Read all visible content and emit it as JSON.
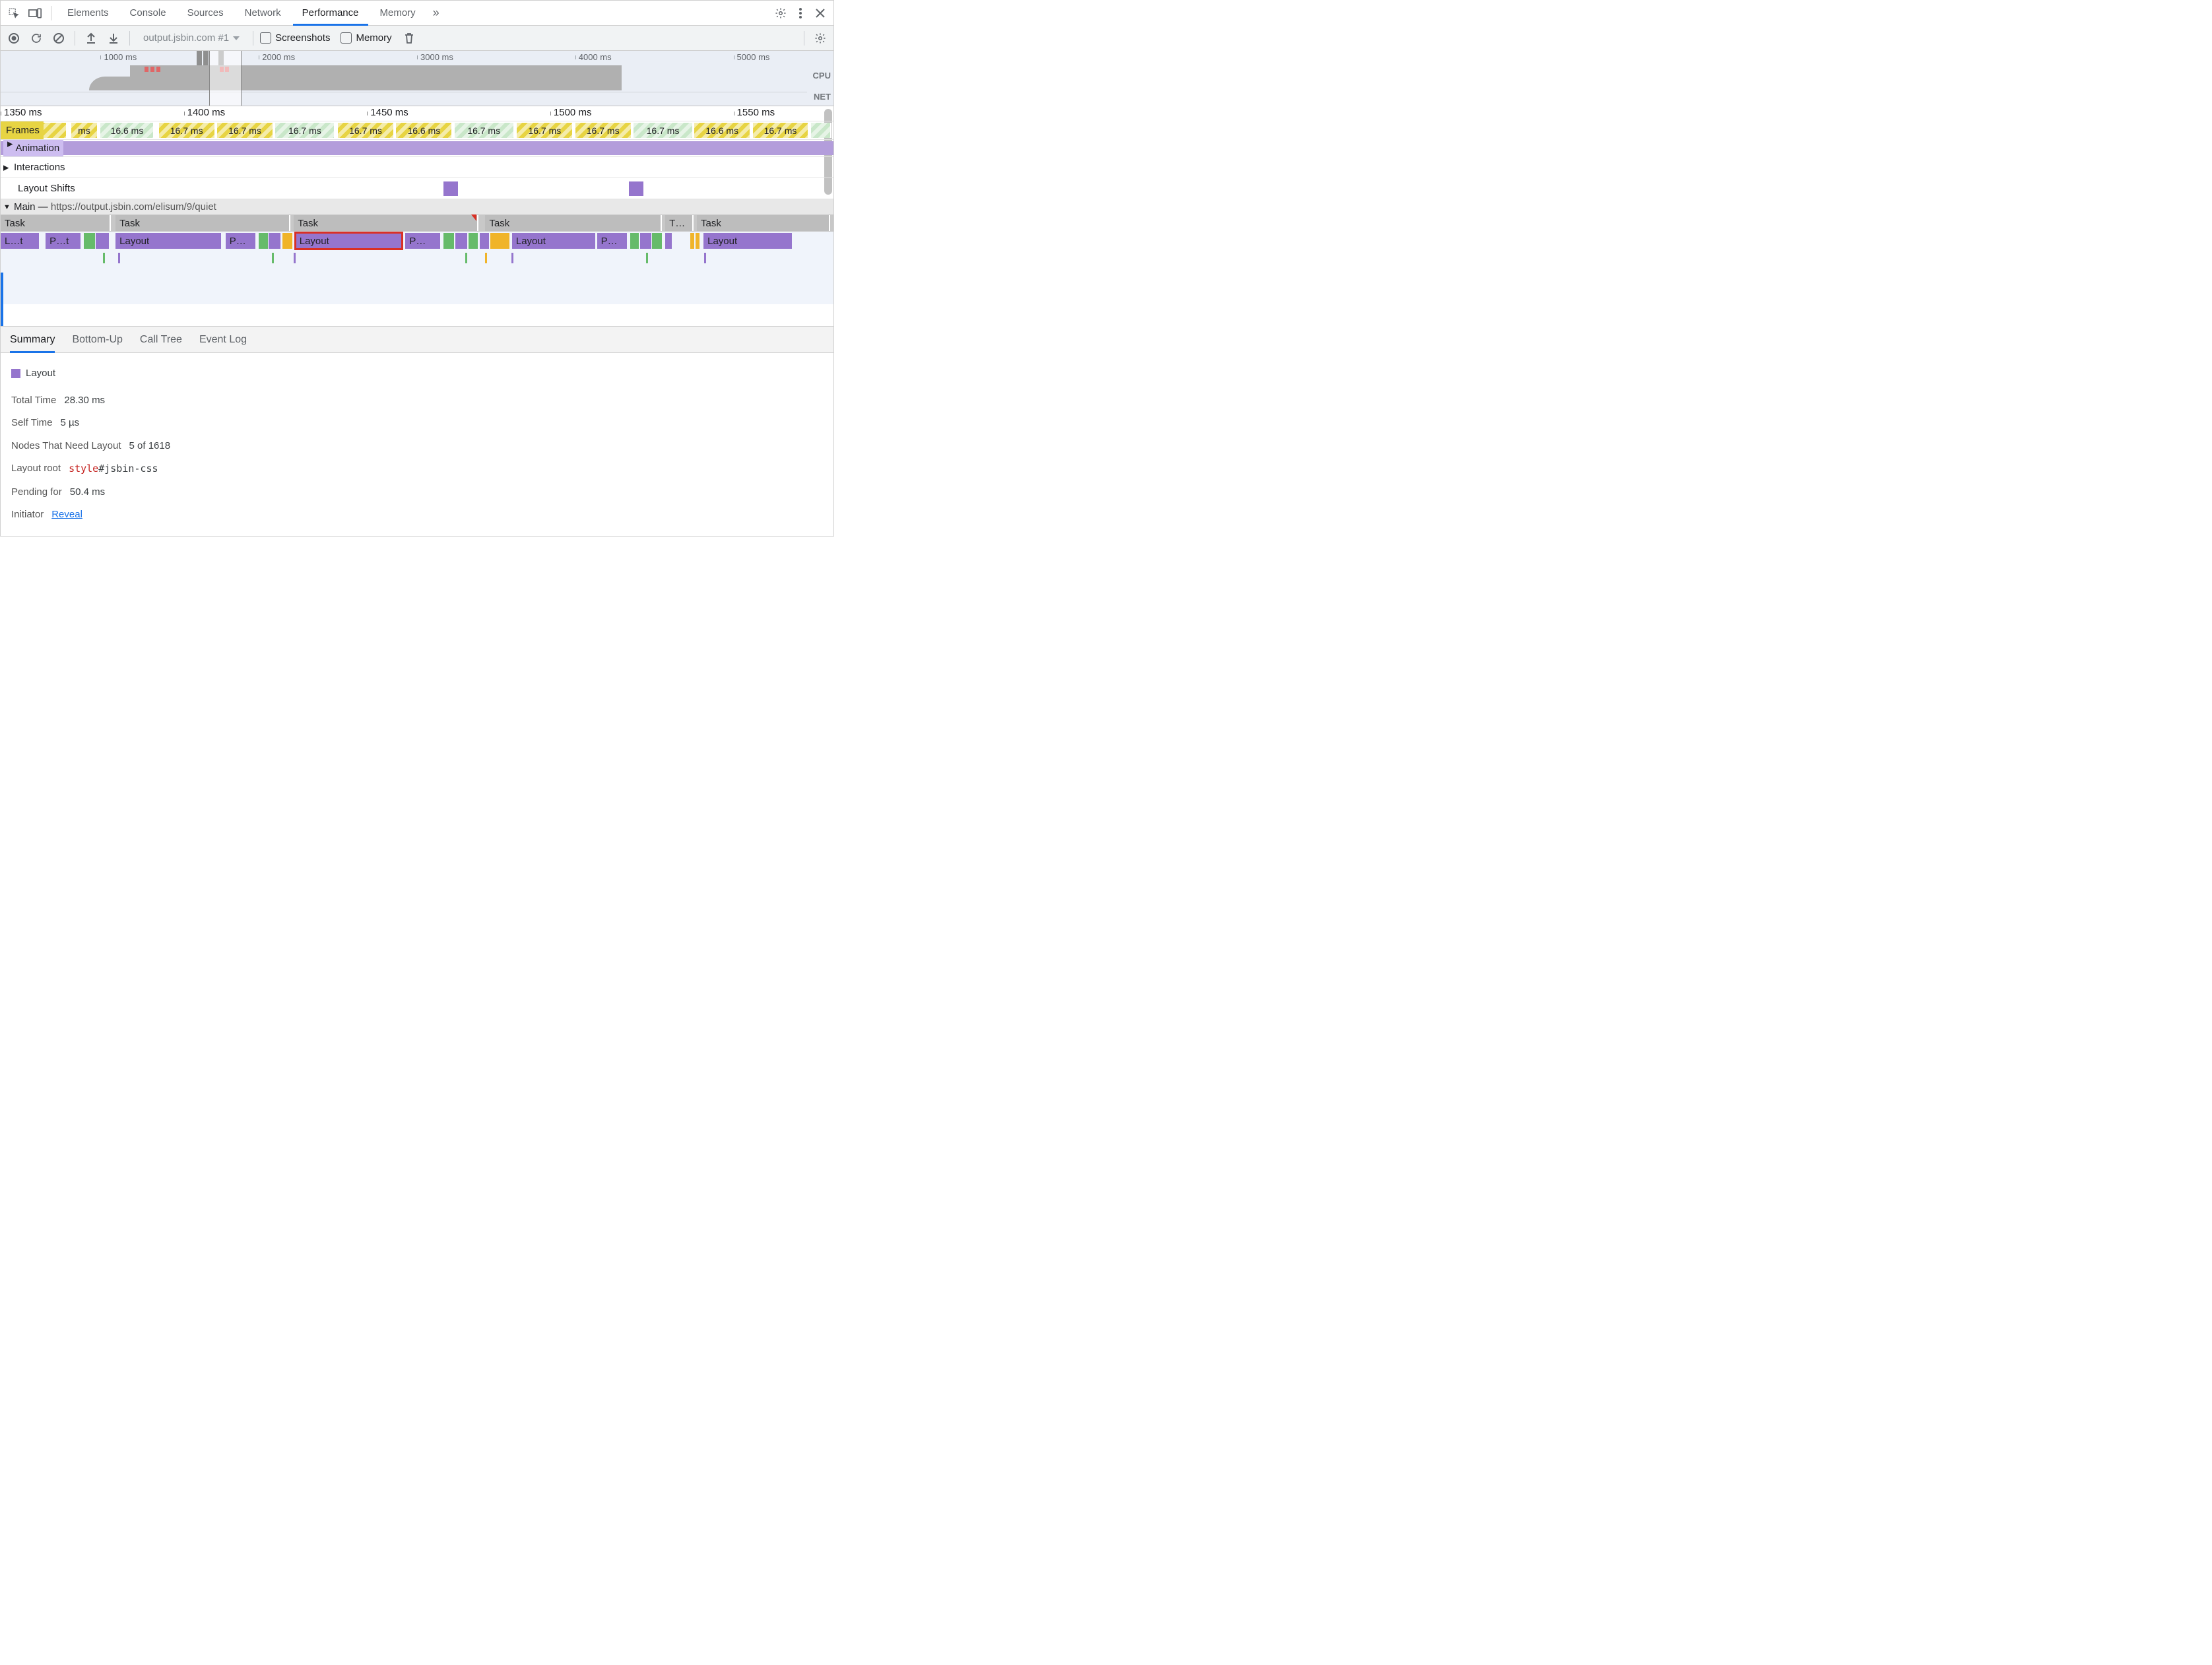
{
  "colors": {
    "accent": "#1a73e8",
    "purple": "#9575cd",
    "purple_light": "#b39ddb",
    "purple_pale": "#cdbdf0",
    "green": "#66bb6a",
    "green_pale": "#c9e7c9",
    "yellow": "#e7d443",
    "orange": "#f0b429",
    "grey_task": "#bdbdbd",
    "red": "#d93025",
    "bg_over": "#eaeef5",
    "bg_flame": "#f0f4fb"
  },
  "top_tabs": {
    "items": [
      "Elements",
      "Console",
      "Sources",
      "Network",
      "Performance",
      "Memory"
    ],
    "active_index": 4,
    "more_glyph": "»"
  },
  "toolbar": {
    "recording_selector": "output.jsbin.com #1",
    "screenshots_label": "Screenshots",
    "screenshots_checked": false,
    "memory_label": "Memory",
    "memory_checked": false
  },
  "overview": {
    "ticks": [
      {
        "pos_pct": 12,
        "label": "1000 ms"
      },
      {
        "pos_pct": 31,
        "label": "2000 ms"
      },
      {
        "pos_pct": 50,
        "label": "3000 ms"
      },
      {
        "pos_pct": 69,
        "label": "4000 ms"
      },
      {
        "pos_pct": 88,
        "label": "5000 ms"
      }
    ],
    "cpu_label": "CPU",
    "net_label": "NET",
    "cpu_poly_color": "#b0b0b0",
    "cpu_block": {
      "left_pct": 16,
      "width_pct": 61,
      "height_pct": 100
    },
    "red_marks_pct": [
      17.8,
      18.6,
      19.3,
      27.2,
      27.8
    ],
    "grey_marks_pct": [
      24.3,
      25.1,
      27.0
    ],
    "selection": {
      "left_pct": 25.0,
      "width_pct": 3.9
    }
  },
  "detail": {
    "ruler_ticks": [
      {
        "pos_pct": 0,
        "label": "1350 ms"
      },
      {
        "pos_pct": 22,
        "label": "1400 ms"
      },
      {
        "pos_pct": 44,
        "label": "1450 ms"
      },
      {
        "pos_pct": 66,
        "label": "1500 ms"
      },
      {
        "pos_pct": 88,
        "label": "1550 ms"
      }
    ],
    "frames_label": "Frames",
    "frames": [
      {
        "left_pct": 0,
        "width_pct": 8,
        "label": "ms",
        "bg": "#e7d443"
      },
      {
        "left_pct": 8.5,
        "width_pct": 3.2,
        "label": "ms",
        "bg": "#e7d443"
      },
      {
        "left_pct": 12,
        "width_pct": 6.5,
        "label": "16.6 ms",
        "bg": "#c9e7c9"
      },
      {
        "left_pct": 19,
        "width_pct": 6.8,
        "label": "16.7 ms",
        "bg": "#e7d443"
      },
      {
        "left_pct": 26,
        "width_pct": 6.8,
        "label": "16.7 ms",
        "bg": "#e7d443"
      },
      {
        "left_pct": 33,
        "width_pct": 7.2,
        "label": "16.7 ms",
        "bg": "#c9e7c9"
      },
      {
        "left_pct": 40.5,
        "width_pct": 6.8,
        "label": "16.7 ms",
        "bg": "#e7d443"
      },
      {
        "left_pct": 47.5,
        "width_pct": 6.8,
        "label": "16.6 ms",
        "bg": "#e7d443"
      },
      {
        "left_pct": 54.5,
        "width_pct": 7.2,
        "label": "16.7 ms",
        "bg": "#c9e7c9"
      },
      {
        "left_pct": 62,
        "width_pct": 6.8,
        "label": "16.7 ms",
        "bg": "#e7d443"
      },
      {
        "left_pct": 69,
        "width_pct": 6.8,
        "label": "16.7 ms",
        "bg": "#e7d443"
      },
      {
        "left_pct": 76,
        "width_pct": 7.2,
        "label": "16.7 ms",
        "bg": "#c9e7c9"
      },
      {
        "left_pct": 83.3,
        "width_pct": 6.8,
        "label": "16.6 ms",
        "bg": "#e7d443"
      },
      {
        "left_pct": 90.3,
        "width_pct": 6.8,
        "label": "16.7 ms",
        "bg": "#e7d443"
      },
      {
        "left_pct": 97.3,
        "width_pct": 2.5,
        "label": "",
        "bg": "#c9e7c9"
      }
    ],
    "animation_label": "Animation",
    "interactions_label": "Interactions",
    "layout_shifts_label": "Layout Shifts",
    "layout_shift_marks_pct": [
      53.2,
      75.4
    ],
    "main_prefix": "Main",
    "main_dash": " — ",
    "main_url": "https://output.jsbin.com/elisum/9/quiet",
    "task_segments": [
      {
        "left_pct": 0,
        "width_pct": 13.2,
        "label": "Task"
      },
      {
        "left_pct": 13.8,
        "width_pct": 21,
        "label": "Task"
      },
      {
        "left_pct": 35.2,
        "width_pct": 22.2,
        "label": "Task",
        "long": true,
        "tri_pct": 56.5
      },
      {
        "left_pct": 58.2,
        "width_pct": 21.2,
        "label": "Task"
      },
      {
        "left_pct": 79.8,
        "width_pct": 3.4,
        "label": "T…"
      },
      {
        "left_pct": 83.6,
        "width_pct": 16,
        "label": "Task"
      }
    ],
    "flame_segments": [
      {
        "left_pct": 0,
        "width_pct": 4.6,
        "label": "L…t",
        "bg": "#9575cd"
      },
      {
        "left_pct": 5.4,
        "width_pct": 4.2,
        "label": "P…t",
        "bg": "#9575cd"
      },
      {
        "left_pct": 10,
        "width_pct": 1.3,
        "label": "",
        "bg": "#66bb6a"
      },
      {
        "left_pct": 11.4,
        "width_pct": 1.6,
        "label": "",
        "bg": "#9575cd"
      },
      {
        "left_pct": 13.8,
        "width_pct": 12.7,
        "label": "Layout",
        "bg": "#9575cd"
      },
      {
        "left_pct": 27,
        "width_pct": 3.6,
        "label": "P…",
        "bg": "#9575cd"
      },
      {
        "left_pct": 31,
        "width_pct": 1.1,
        "label": "",
        "bg": "#66bb6a"
      },
      {
        "left_pct": 32.2,
        "width_pct": 1.4,
        "label": "",
        "bg": "#9575cd"
      },
      {
        "left_pct": 33.8,
        "width_pct": 1.2,
        "label": "",
        "bg": "#f0b429"
      },
      {
        "left_pct": 35.4,
        "width_pct": 12.8,
        "label": "Layout",
        "bg": "#9575cd",
        "hl": true
      },
      {
        "left_pct": 48.6,
        "width_pct": 4.2,
        "label": "P…",
        "bg": "#9575cd"
      },
      {
        "left_pct": 53.2,
        "width_pct": 1.2,
        "label": "",
        "bg": "#66bb6a"
      },
      {
        "left_pct": 54.6,
        "width_pct": 1.4,
        "label": "",
        "bg": "#9575cd"
      },
      {
        "left_pct": 56.2,
        "width_pct": 1.1,
        "label": "",
        "bg": "#66bb6a"
      },
      {
        "left_pct": 57.5,
        "width_pct": 1.1,
        "label": "",
        "bg": "#9575cd"
      },
      {
        "left_pct": 58.8,
        "width_pct": 2.3,
        "label": "",
        "bg": "#f0b429"
      },
      {
        "left_pct": 61.4,
        "width_pct": 10,
        "label": "Layout",
        "bg": "#9575cd"
      },
      {
        "left_pct": 71.6,
        "width_pct": 3.6,
        "label": "P…",
        "bg": "#9575cd"
      },
      {
        "left_pct": 75.6,
        "width_pct": 1.0,
        "label": "",
        "bg": "#66bb6a"
      },
      {
        "left_pct": 76.8,
        "width_pct": 1.3,
        "label": "",
        "bg": "#9575cd"
      },
      {
        "left_pct": 78.2,
        "width_pct": 1.2,
        "label": "",
        "bg": "#66bb6a"
      },
      {
        "left_pct": 79.8,
        "width_pct": 0.8,
        "label": "",
        "bg": "#9575cd"
      },
      {
        "left_pct": 82.8,
        "width_pct": 0.5,
        "label": "",
        "bg": "#f0b429"
      },
      {
        "left_pct": 83.4,
        "width_pct": 0.5,
        "label": "",
        "bg": "#f0b429"
      },
      {
        "left_pct": 84.4,
        "width_pct": 10.6,
        "label": "Layout",
        "bg": "#9575cd"
      }
    ],
    "sparks": [
      {
        "pos_pct": 12.3,
        "color": "#66bb6a"
      },
      {
        "pos_pct": 14.1,
        "color": "#9575cd"
      },
      {
        "pos_pct": 32.6,
        "color": "#66bb6a"
      },
      {
        "pos_pct": 35.2,
        "color": "#9575cd"
      },
      {
        "pos_pct": 55.8,
        "color": "#66bb6a"
      },
      {
        "pos_pct": 58.2,
        "color": "#f0b429"
      },
      {
        "pos_pct": 61.3,
        "color": "#9575cd"
      },
      {
        "pos_pct": 77.5,
        "color": "#66bb6a"
      },
      {
        "pos_pct": 84.5,
        "color": "#9575cd"
      }
    ]
  },
  "bottom_tabs": {
    "items": [
      "Summary",
      "Bottom-Up",
      "Call Tree",
      "Event Log"
    ],
    "active_index": 0
  },
  "summary": {
    "swatch_color": "#9575cd",
    "title": "Layout",
    "total_time": {
      "k": "Total Time",
      "v": "28.30 ms"
    },
    "self_time": {
      "k": "Self Time",
      "v": "5 µs"
    },
    "nodes": {
      "k": "Nodes That Need Layout",
      "v": "5 of 1618"
    },
    "layout_root": {
      "k": "Layout root",
      "tag": "style",
      "sel": "#jsbin-css"
    },
    "pending": {
      "k": "Pending for",
      "v": "50.4 ms"
    },
    "initiator": {
      "k": "Initiator",
      "link": "Reveal"
    }
  }
}
